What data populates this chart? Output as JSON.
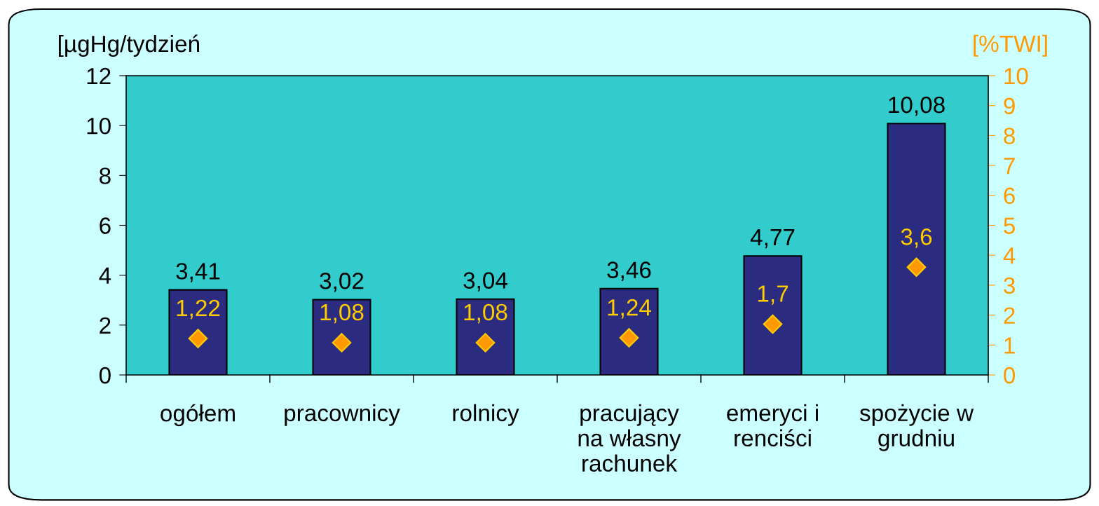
{
  "chart_data": {
    "type": "bar",
    "ylabel": "[µgHg/tydzień",
    "y2label": "[%TWI]",
    "categories": [
      "ogółem",
      "pracownicy",
      "rolnicy",
      "pracujący\nna własny\nrachunek",
      "emeryci i\nrenciści",
      "spożycie w\ngrudniu"
    ],
    "series": [
      {
        "color": "#2b2b80",
        "values": [
          3.41,
          3.02,
          3.04,
          3.46,
          4.77,
          10.08
        ],
        "value_labels": [
          "3,41",
          "3,02",
          "3,04",
          "3,46",
          "4,77",
          "10,08"
        ]
      },
      {
        "type": "scatter",
        "axis": "y2",
        "color": "#ff9900",
        "marker": "diamond",
        "values": [
          1.22,
          1.08,
          1.08,
          1.24,
          1.7,
          3.6
        ],
        "value_labels": [
          "1,22",
          "1,08",
          "1,08",
          "1,24",
          "1,7",
          "3,6"
        ]
      }
    ],
    "ylim": [
      0,
      12
    ],
    "yticks": [
      0,
      2,
      4,
      6,
      8,
      10,
      12
    ],
    "y2lim": [
      0,
      10
    ],
    "y2ticks": [
      0,
      1,
      2,
      3,
      4,
      5,
      6,
      7,
      8,
      9,
      10
    ],
    "grid": false
  }
}
